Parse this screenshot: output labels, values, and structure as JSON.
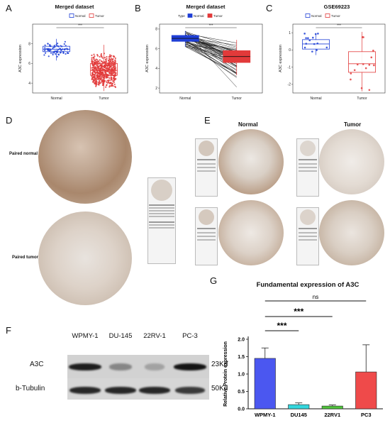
{
  "panels": {
    "A": {
      "letter": "A",
      "title": "Merged dataset"
    },
    "B": {
      "letter": "B",
      "title": "Merged dataset"
    },
    "C": {
      "letter": "C",
      "title": "GSE69223"
    },
    "D": {
      "letter": "D",
      "label_normal": "Paired normal",
      "label_tumor": "Paired tumor"
    },
    "E": {
      "letter": "E",
      "col_normal": "Normal",
      "col_tumor": "Tumor"
    },
    "F": {
      "letter": "F"
    },
    "G": {
      "letter": "G",
      "title": "Fundamental expression of A3C"
    }
  },
  "colors": {
    "normal": "#1f3fd6",
    "tumor": "#e23a3a",
    "wpmy": "#4b57f0",
    "du145": "#34d6dd",
    "rv1": "#4fc43b",
    "pc3": "#ef4a4a"
  },
  "chart_data": [
    {
      "type": "box",
      "panel": "A",
      "title": "Merged dataset",
      "ylabel": "A3C expression",
      "categories": [
        "Normal",
        "Tumor"
      ],
      "legend": [
        "Normal",
        "Tumor"
      ],
      "significance": "***",
      "ylim": [
        3,
        10
      ],
      "yticks": [
        4,
        6,
        8
      ],
      "boxes": [
        {
          "name": "Normal",
          "q1": 7.2,
          "median": 7.45,
          "q3": 7.75,
          "whisker_low": 6.3,
          "whisker_high": 8.5
        },
        {
          "name": "Tumor",
          "q1": 4.8,
          "median": 5.3,
          "q3": 6.0,
          "whisker_low": 3.2,
          "whisker_high": 7.9
        }
      ]
    },
    {
      "type": "paired-box",
      "panel": "B",
      "title": "Merged dataset",
      "ylabel": "A3C expression",
      "categories": [
        "Normal",
        "Tumor"
      ],
      "legend_title": "Type",
      "legend": [
        "Normal",
        "Tumor"
      ],
      "significance": "***",
      "ylim": [
        1.5,
        8.5
      ],
      "yticks": [
        2,
        4,
        6,
        8
      ],
      "boxes": [
        {
          "name": "Normal",
          "q1": 6.75,
          "median": 7.05,
          "q3": 7.35,
          "whisker_low": 6.2,
          "whisker_high": 7.8
        },
        {
          "name": "Tumor",
          "q1": 4.6,
          "median": 5.2,
          "q3": 5.8,
          "whisker_low": 3.3,
          "whisker_high": 6.9
        }
      ]
    },
    {
      "type": "box",
      "panel": "C",
      "title": "GSE69223",
      "ylabel": "A3C expression",
      "categories": [
        "Normal",
        "Tumor"
      ],
      "legend": [
        "Normal",
        "Tumor"
      ],
      "significance": "***",
      "ylim": [
        -2.5,
        1.5
      ],
      "yticks": [
        1,
        0,
        -1,
        -2
      ],
      "boxes": [
        {
          "name": "Normal",
          "q1": 0.05,
          "median": 0.35,
          "q3": 0.6,
          "whisker_low": -0.3,
          "whisker_high": 0.95
        },
        {
          "name": "Tumor",
          "q1": -1.3,
          "median": -0.8,
          "q3": -0.1,
          "whisker_low": -2.4,
          "whisker_high": 1.05
        }
      ]
    },
    {
      "type": "bar",
      "panel": "G",
      "title": "Fundamental expression of A3C",
      "ylabel": "Relative Protein expression",
      "categories": [
        "WPMY-1",
        "DU145",
        "22RV1",
        "PC3"
      ],
      "values": [
        1.45,
        0.12,
        0.08,
        1.06
      ],
      "errors": [
        0.3,
        0.05,
        0.03,
        0.78
      ],
      "ylim": [
        0,
        2.0
      ],
      "yticks": [
        0.0,
        0.5,
        1.0,
        1.5,
        2.0
      ],
      "comparisons": [
        {
          "from": "WPMY-1",
          "to": "DU145",
          "label": "***"
        },
        {
          "from": "WPMY-1",
          "to": "22RV1",
          "label": "***"
        },
        {
          "from": "WPMY-1",
          "to": "PC3",
          "label": "ns"
        }
      ]
    }
  ],
  "western_blot": {
    "lanes": [
      "WPMY-1",
      "DU-145",
      "22RV-1",
      "PC-3"
    ],
    "rows": [
      {
        "protein": "A3C",
        "size": "23Kd",
        "intensity": [
          0.9,
          0.35,
          0.2,
          0.95
        ]
      },
      {
        "protein": "b-Tubulin",
        "size": "50Kd",
        "intensity": [
          0.85,
          0.85,
          0.85,
          0.75
        ]
      }
    ]
  }
}
